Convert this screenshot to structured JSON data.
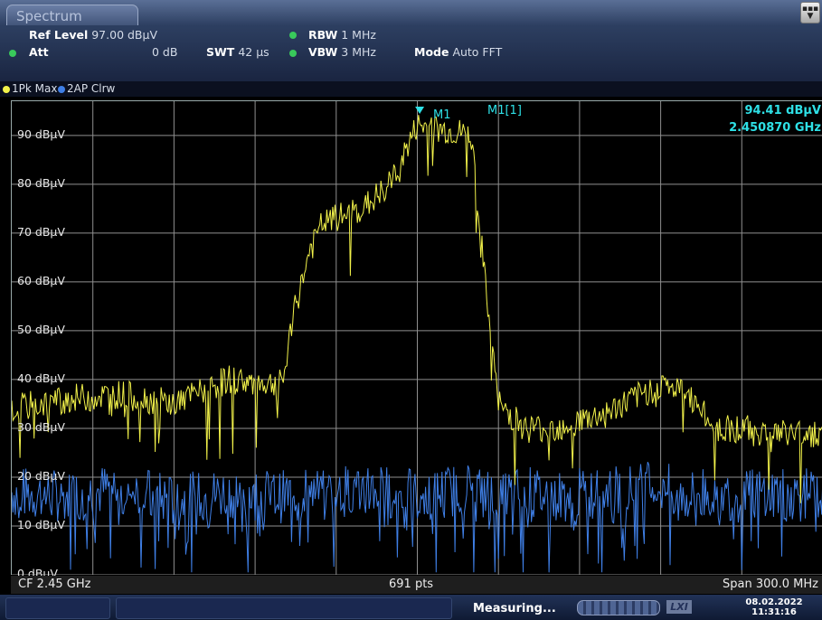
{
  "tab": {
    "title": "Spectrum"
  },
  "settings": {
    "ref_level_label": "Ref Level",
    "ref_level_value": "97.00 dBµV",
    "att_label": "Att",
    "att_value": "0 dB",
    "swt_label": "SWT",
    "swt_value": "42 µs",
    "rbw_label": "RBW",
    "rbw_value": "1 MHz",
    "vbw_label": "VBW",
    "vbw_value": "3 MHz",
    "mode_label": "Mode",
    "mode_value": "Auto FFT"
  },
  "traces": [
    {
      "label": "1Pk Max",
      "color": "#f2f24a"
    },
    {
      "label": "2AP Clrw",
      "color": "#3f7fe6"
    }
  ],
  "y_axis": {
    "labels": [
      "90 dBµV",
      "80 dBµV",
      "70 dBµV",
      "60 dBµV",
      "50 dBµV",
      "40 dBµV",
      "30 dBµV",
      "20 dBµV",
      "10 dBµV",
      "0 dBµV"
    ]
  },
  "marker": {
    "name": "M1",
    "readout_label": "M1[1]",
    "level": "94.41 dBµV",
    "frequency": "2.450870 GHz"
  },
  "bottom": {
    "cf": "CF 2.45 GHz",
    "points": "691 pts",
    "span": "Span 300.0 MHz"
  },
  "status": {
    "measuring": "Measuring...",
    "lxi": "LXI",
    "date": "08.02.2022",
    "time": "11:31:16"
  },
  "chart_data": {
    "type": "line",
    "x": [
      2.3,
      2.32,
      2.34,
      2.36,
      2.38,
      2.4,
      2.405,
      2.41,
      2.415,
      2.42,
      2.43,
      2.44,
      2.45,
      2.46,
      2.47,
      2.475,
      2.48,
      2.49,
      2.5,
      2.52,
      2.54,
      2.55,
      2.56,
      2.57,
      2.58,
      2.6
    ],
    "series": [
      {
        "name": "1Pk Max",
        "values": [
          34,
          36,
          37,
          35,
          40,
          39,
          55,
          66,
          72,
          73,
          75,
          80,
          92,
          91,
          90,
          60,
          35,
          30,
          30,
          33,
          39,
          37,
          30,
          30,
          29,
          29
        ]
      },
      {
        "name": "2AP Clrw",
        "values": [
          17,
          16,
          18,
          15,
          17,
          16,
          17,
          18,
          16,
          17,
          18,
          17,
          16,
          17,
          18,
          17,
          16,
          17,
          16,
          17,
          18,
          16,
          17,
          16,
          17,
          16
        ]
      }
    ],
    "ylim": [
      0,
      97
    ],
    "grid": true
  }
}
